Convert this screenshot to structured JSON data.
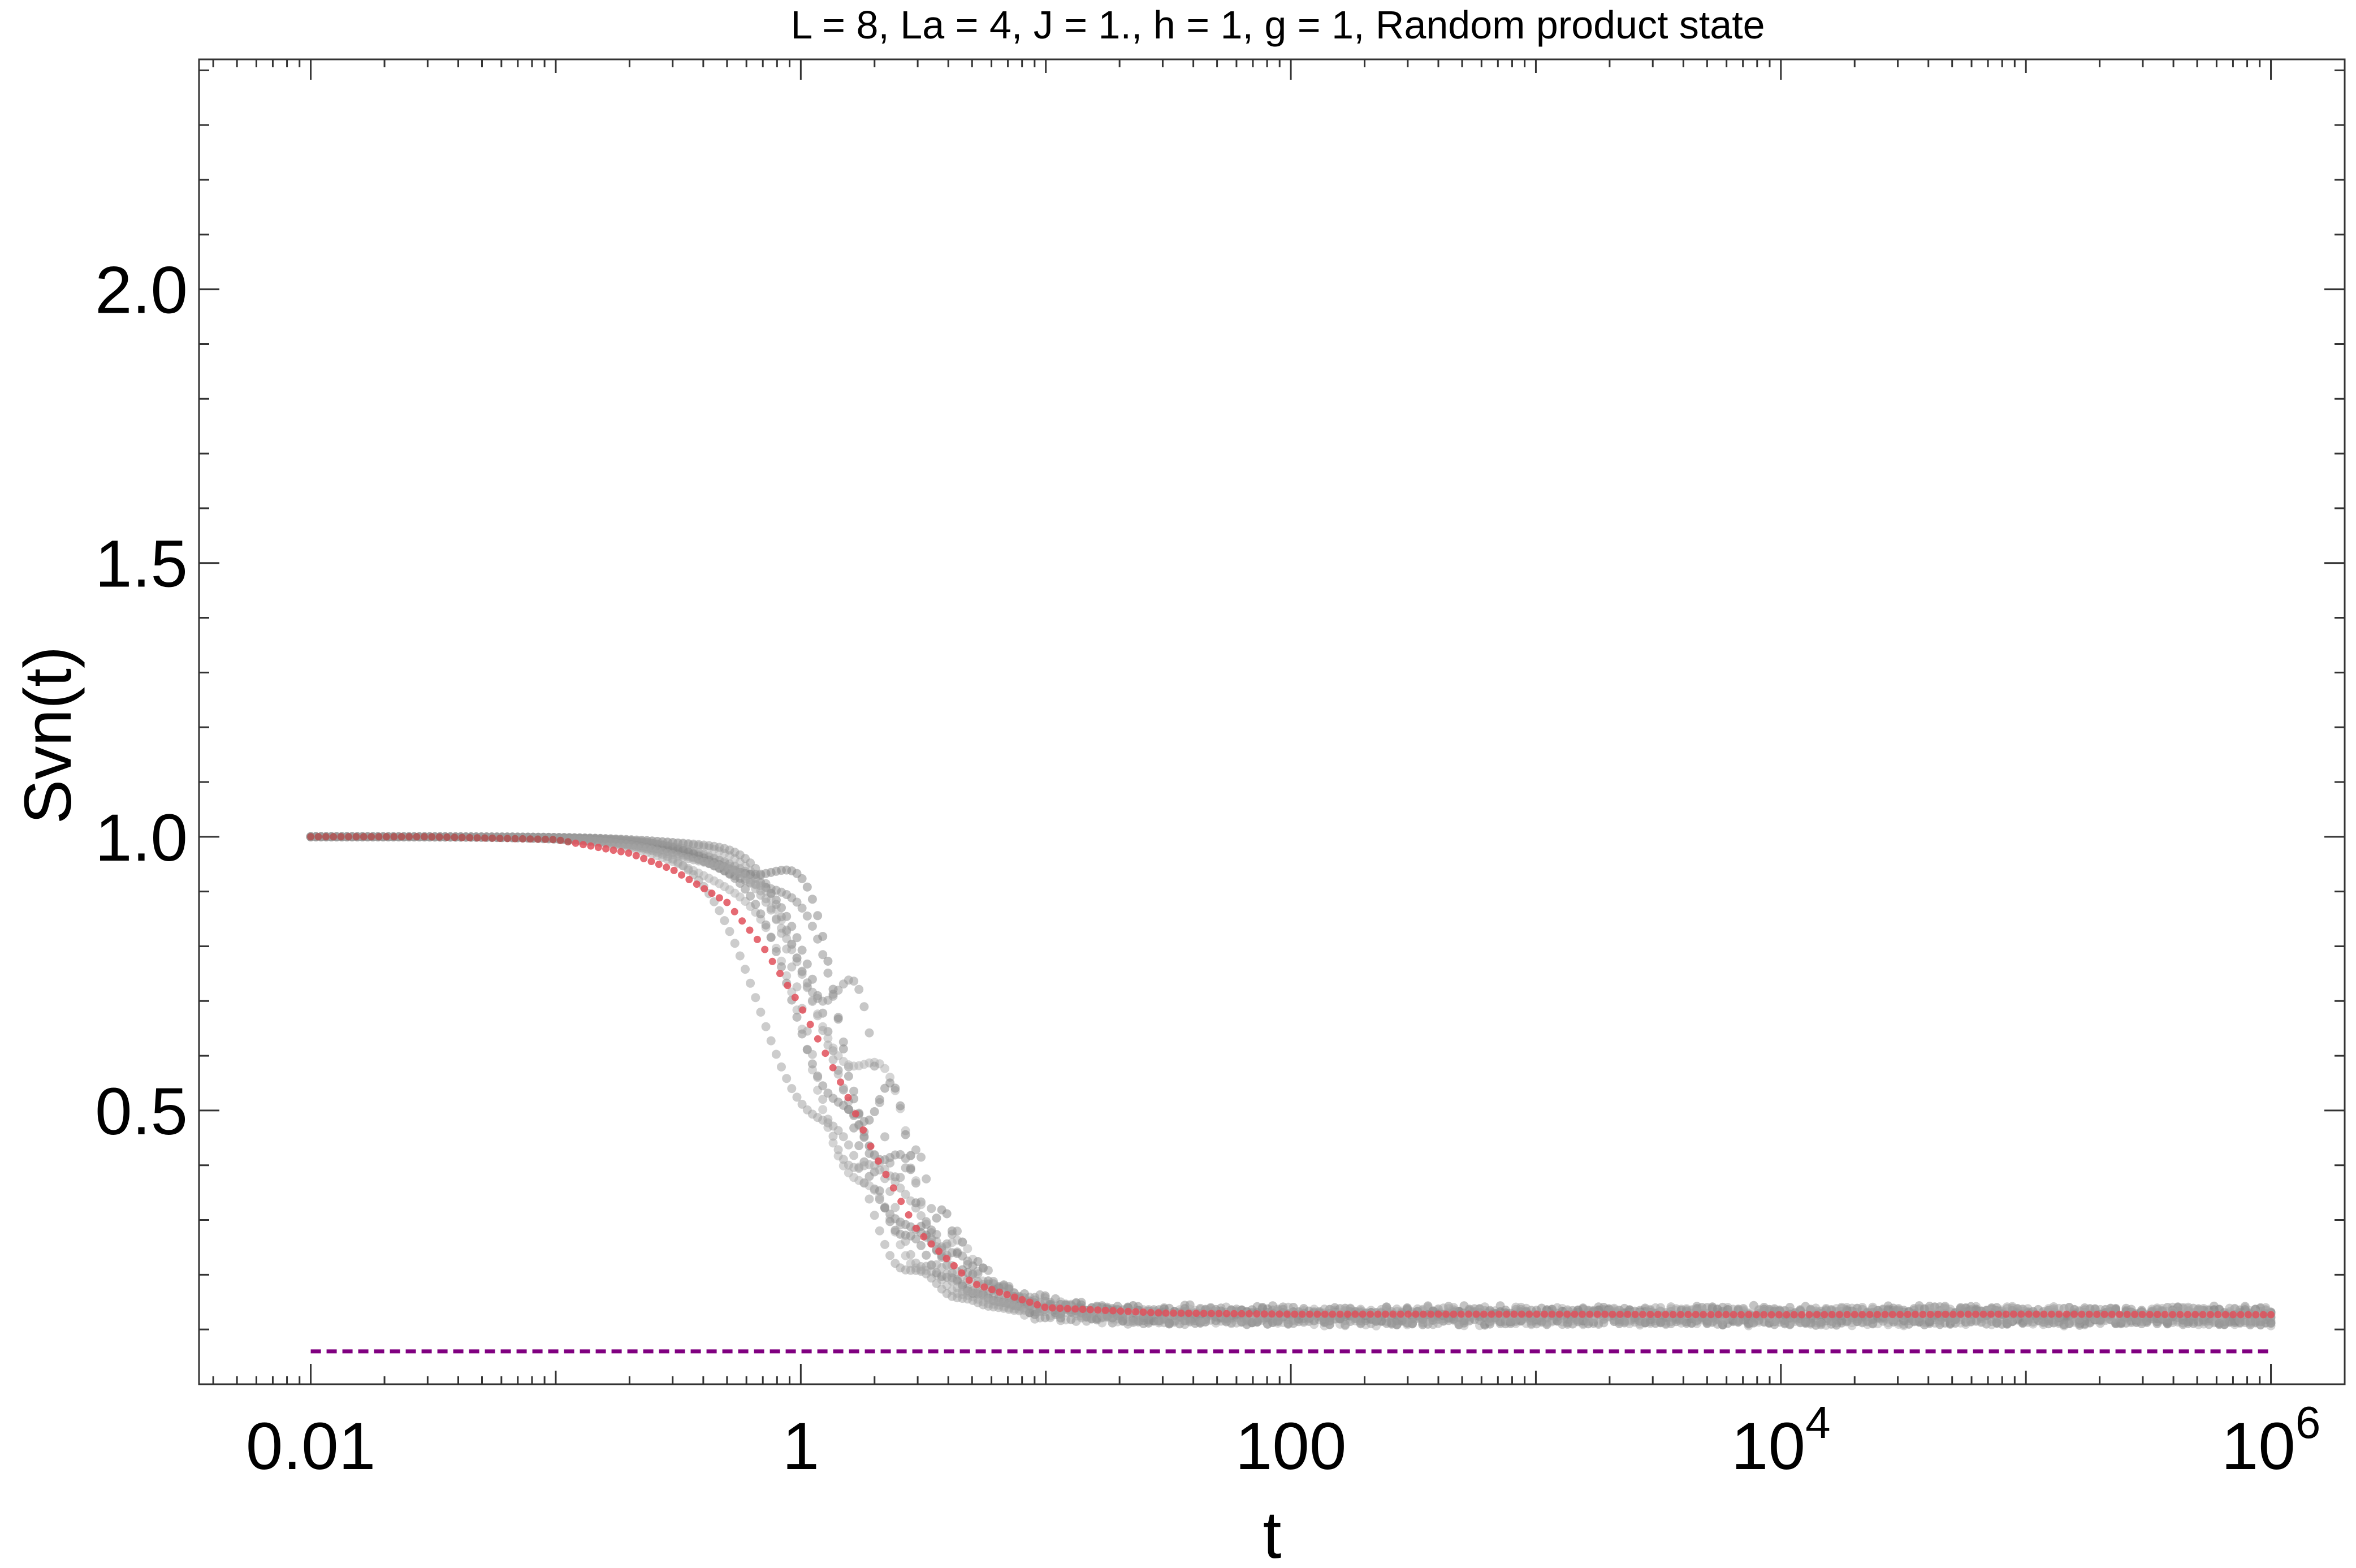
{
  "chart_data": {
    "type": "scatter",
    "title": "L = 8, La = 4, J = 1., h = 1, g = 1, Random product state",
    "xlabel": "t",
    "ylabel": "Svn(t)",
    "x_scale": "log",
    "xlim": [
      0.0035,
      2000000
    ],
    "ylim": [
      0.0,
      2.42
    ],
    "x_ticks": [
      {
        "value": 0.01,
        "label": "0.01"
      },
      {
        "value": 1,
        "label": "1"
      },
      {
        "value": 100,
        "label": "100"
      },
      {
        "value": 10000,
        "label": "10",
        "exp": "4"
      },
      {
        "value": 1000000,
        "label": "10",
        "exp": "6"
      }
    ],
    "y_ticks": [
      {
        "value": 0.5,
        "label": "0.5"
      },
      {
        "value": 1.0,
        "label": "1.0"
      },
      {
        "value": 1.5,
        "label": "1.5"
      },
      {
        "value": 2.0,
        "label": "2.0"
      }
    ],
    "grid": false,
    "colors": {
      "samples": "#8c8c8c",
      "average": "#e0505a",
      "reference": "#800080"
    },
    "series": [
      {
        "kind": "samples",
        "style": "gray dots",
        "count": 10,
        "t_start": 0.01,
        "t_end": 1000000,
        "initial_value": 1.0,
        "plateau_value": 0.125,
        "decay_time_range": [
          0.8,
          2.5
        ]
      },
      {
        "kind": "average",
        "style": "red dots",
        "x": [
          0.01,
          0.03,
          0.1,
          0.2,
          0.3,
          0.5,
          0.7,
          1.0,
          1.5,
          2.0,
          3.0,
          5.0,
          10,
          30,
          100,
          1000,
          10000,
          100000,
          1000000
        ],
        "y": [
          1.0,
          1.0,
          0.995,
          0.97,
          0.94,
          0.88,
          0.8,
          0.69,
          0.54,
          0.42,
          0.28,
          0.185,
          0.14,
          0.13,
          0.128,
          0.128,
          0.127,
          0.128,
          0.127
        ]
      },
      {
        "kind": "reference",
        "style": "dashed line",
        "x": [
          0.01,
          1000000
        ],
        "y": [
          0.06,
          0.06
        ]
      }
    ]
  }
}
